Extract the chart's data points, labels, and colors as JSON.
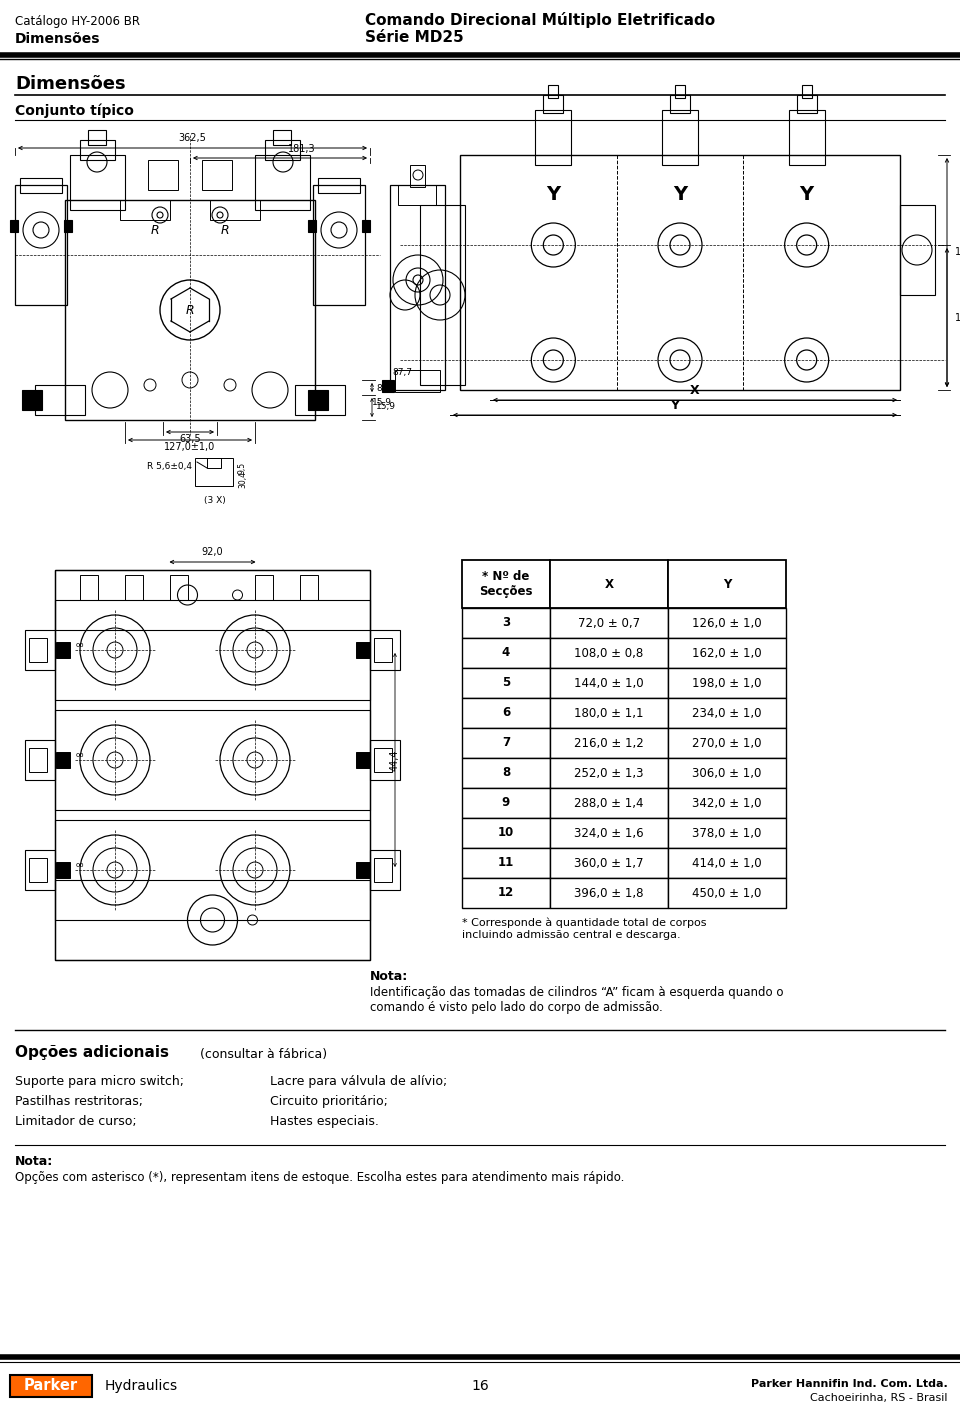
{
  "header_left_line1": "Catálogo HY-2006 BR",
  "header_left_line2": "Dimensões",
  "header_right_line1": "Comando Direcional Múltiplo Eletrificado",
  "header_right_line2": "Série MD25",
  "section_title1": "Dimensões",
  "section_title2": "Conjunto típico",
  "table_header": [
    "* Nº de\nSecções",
    "X",
    "Y"
  ],
  "table_rows": [
    [
      "3",
      "72,0 ± 0,7",
      "126,0 ± 1,0"
    ],
    [
      "4",
      "108,0 ± 0,8",
      "162,0 ± 1,0"
    ],
    [
      "5",
      "144,0 ± 1,0",
      "198,0 ± 1,0"
    ],
    [
      "6",
      "180,0 ± 1,1",
      "234,0 ± 1,0"
    ],
    [
      "7",
      "216,0 ± 1,2",
      "270,0 ± 1,0"
    ],
    [
      "8",
      "252,0 ± 1,3",
      "306,0 ± 1,0"
    ],
    [
      "9",
      "288,0 ± 1,4",
      "342,0 ± 1,0"
    ],
    [
      "10",
      "324,0 ± 1,6",
      "378,0 ± 1,0"
    ],
    [
      "11",
      "360,0 ± 1,7",
      "414,0 ± 1,0"
    ],
    [
      "12",
      "396,0 ± 1,8",
      "450,0 ± 1,0"
    ]
  ],
  "footnote_asterisk": "* Corresponde à quantidade total de corpos\nincluindo admissão central e descarga.",
  "nota_label": "Nota:",
  "nota_text": "Identificação das tomadas de cilindros “A” ficam à esquerda quando o\ncomando é visto pelo lado do corpo de admissão.",
  "opcoes_title": "Opções adicionais",
  "opcoes_subtitle": "(consultar à fábrica)",
  "opcoes_left": [
    "Suporte para micro switch;",
    "Pastilhas restritoras;",
    "Limitador de curso;"
  ],
  "opcoes_right": [
    "Lacre para válvula de alívio;",
    "Circuito prioritário;",
    "Hastes especiais."
  ],
  "nota2_label": "Nota:",
  "nota2_text": "Opções com asterisco (*), representam itens de estoque. Escolha estes para atendimento mais rápido.",
  "page_number": "16",
  "footer_company": "Parker Hannifin Ind. Com. Ltda.",
  "footer_location": "Cachoeirinha, RS - Brasil",
  "bg_color": "#ffffff",
  "text_color": "#000000"
}
